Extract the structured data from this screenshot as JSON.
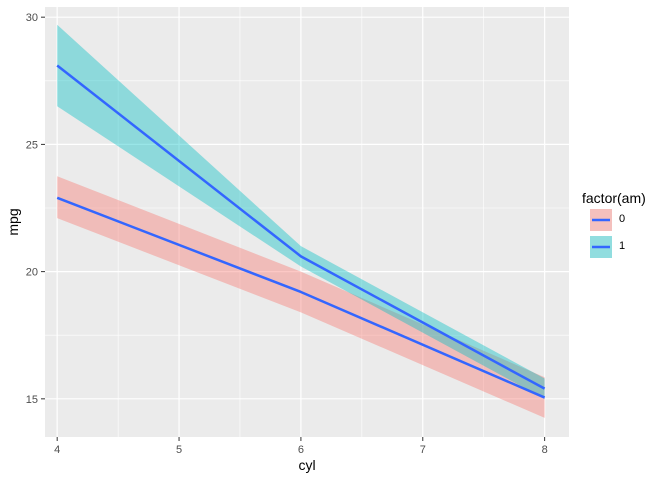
{
  "chart_data": {
    "type": "line",
    "xlabel": "cyl",
    "ylabel": "mpg",
    "xlim": [
      3.9,
      8.2
    ],
    "ylim": [
      13.5,
      30.4
    ],
    "x_ticks": [
      4,
      5,
      6,
      7,
      8
    ],
    "x_tick_labels": [
      "4",
      "5",
      "6",
      "7",
      "8"
    ],
    "y_ticks": [
      15,
      20,
      25,
      30
    ],
    "y_tick_labels": [
      "15",
      "20",
      "25",
      "30"
    ],
    "grid": true,
    "legend": {
      "title": "factor(am)",
      "placement": "right",
      "entries": [
        "0",
        "1"
      ]
    },
    "series": [
      {
        "name": "0",
        "line_color": "#3366FF",
        "fill_color": "#F8766D",
        "x": [
          4,
          6,
          8
        ],
        "y": [
          22.9,
          19.2,
          15.05
        ],
        "ymin": [
          22.1,
          18.4,
          14.25
        ],
        "ymax": [
          23.75,
          20.0,
          15.85
        ]
      },
      {
        "name": "1",
        "line_color": "#3366FF",
        "fill_color": "#00BFC4",
        "x": [
          4,
          6,
          8
        ],
        "y": [
          28.1,
          20.6,
          15.4
        ],
        "ymin": [
          26.5,
          20.2,
          15.0
        ],
        "ymax": [
          29.7,
          21.0,
          15.8
        ]
      }
    ]
  }
}
